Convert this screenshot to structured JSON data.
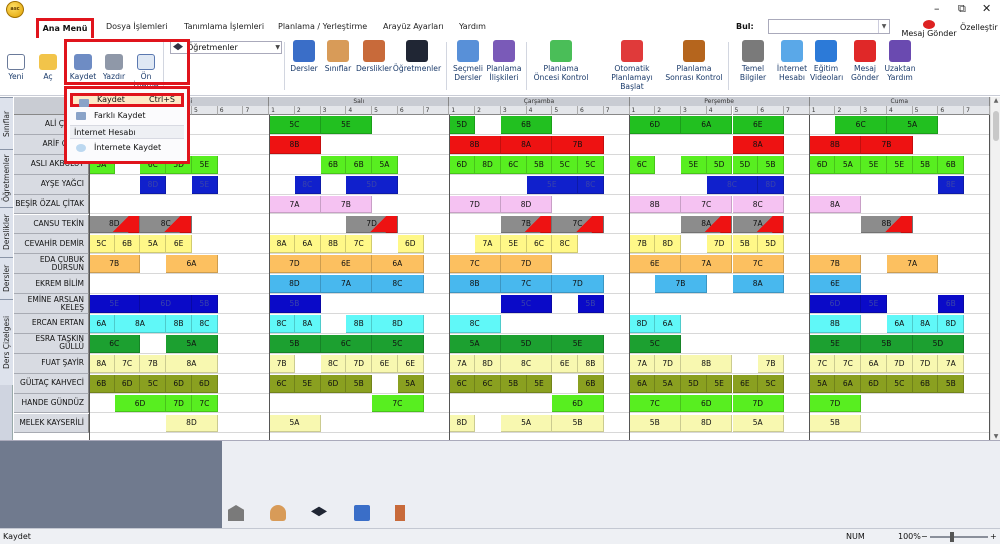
{
  "window": {
    "logo": "asc",
    "min": "–",
    "restore": "⧉",
    "close": "✕"
  },
  "menubar": {
    "tabs": [
      "Ana Menü",
      "Dosya İşlemleri",
      "Tanımlama İşlemleri",
      "Planlama / Yerleştirme",
      "Arayüz Ayarları",
      "Yardım"
    ],
    "find_label": "Bul:",
    "find_value": "",
    "message": "Mesaj Gönder",
    "customize": "Özelleştir"
  },
  "ribbon": {
    "buttons": [
      "Yeni",
      "Aç",
      "Kaydet",
      "Yazdır",
      "Ön İzleme",
      "Dersler",
      "Sınıflar",
      "Derslikler",
      "Öğretmenler",
      "Seçmeli Dersler",
      "Planlama İlişkileri",
      "Planlama Öncesi Kontrol",
      "Otomatik Planlamayı Başlat",
      "Planlama Sonrası Kontrol",
      "Temel Bilgiler",
      "İnternet Hesabı",
      "Eğitim Videoları",
      "Mesaj Gönder",
      "Uzaktan Yardım"
    ],
    "select_value": "Öğretmenler"
  },
  "save_menu": {
    "save": "Kaydet",
    "save_shortcut": "Ctrl+S",
    "save_as": "Farklı Kaydet",
    "header": "İnternet Hesabı",
    "save_internet": "İnternete Kaydet"
  },
  "side_tabs": [
    "Sınıflar",
    "Öğretmenler",
    "Derslikler",
    "Dersler",
    "Ders Çizelgesi"
  ],
  "days": [
    "Pazartesi",
    "Salı",
    "Çarşamba",
    "Perşembe",
    "Cuma"
  ],
  "periods": [
    "1",
    "2",
    "3",
    "4",
    "5",
    "6",
    "7"
  ],
  "teachers": [
    "ALİ ÇEKEN",
    "ARİF OĞUZ",
    "ASLI AKBULUT",
    "AYŞE YAĞCI",
    "BEŞİR ÖZAL ÇİTAK",
    "CANSU TEKİN",
    "CEVAHİR DEMİR",
    "EDA ÇUBUK DURSUN",
    "EKREM BİLİM",
    "EMİNE ARSLAN KELEŞ",
    "ERCAN ERTAN",
    "ESRA TAŞKIN GÜLLÜ",
    "FUAT ŞAYİR",
    "GÜLTAÇ KAHVECİ",
    "HANDE GÜNDÜZ",
    "MELEK KAYSERİLİ"
  ],
  "colors": {
    "green": "#22c020",
    "red": "#ee1212",
    "lime": "#58ee20",
    "navy": "#1020cc",
    "pink": "#f5c2f2",
    "gray": "#8c8c8c",
    "yellow": "#fff888",
    "orange": "#fcc060",
    "sky": "#48b8ee",
    "blue": "#0a0ac8",
    "cyan": "#60f8f8",
    "dkgreen": "#1ca030",
    "ltyellow": "#f8f8b0",
    "olive": "#8aa020"
  },
  "schedule": [
    [
      [
        "G",
        1,
        2,
        "6B"
      ],
      [
        "G",
        7,
        2,
        "5C"
      ],
      [
        "G",
        9,
        2,
        "5E"
      ],
      [
        "G",
        14,
        1,
        "5D"
      ],
      [
        "G",
        16,
        2,
        "6B"
      ],
      [
        "G",
        21,
        2,
        "6D"
      ],
      [
        "G",
        23,
        2,
        "6A"
      ],
      [
        "G",
        25,
        2,
        "6E"
      ],
      [
        "G",
        29,
        2,
        "6C"
      ],
      [
        "G",
        31,
        2,
        "5A"
      ]
    ],
    [
      [
        "R",
        1,
        2,
        "7B"
      ],
      [
        "R",
        7,
        2,
        "8B"
      ],
      [
        "R",
        14,
        2,
        "8B"
      ],
      [
        "R",
        16,
        2,
        "8A"
      ],
      [
        "R",
        18,
        2,
        "7B"
      ],
      [
        "R",
        25,
        2,
        "8A"
      ],
      [
        "R",
        28,
        2,
        "8B"
      ],
      [
        "R",
        30,
        2,
        "7B"
      ]
    ],
    [
      [
        "L",
        0,
        1,
        "5A"
      ],
      [
        "L",
        2,
        1,
        "6C"
      ],
      [
        "L",
        3,
        1,
        "5D"
      ],
      [
        "L",
        4,
        1,
        "5E"
      ],
      [
        "L",
        9,
        1,
        "6B"
      ],
      [
        "L",
        10,
        1,
        "6B"
      ],
      [
        "L",
        11,
        1,
        "5A"
      ],
      [
        "L",
        14,
        1,
        "6D"
      ],
      [
        "L",
        15,
        1,
        "8D"
      ],
      [
        "L",
        16,
        1,
        "6C"
      ],
      [
        "L",
        17,
        1,
        "5B"
      ],
      [
        "L",
        18,
        1,
        "5C"
      ],
      [
        "L",
        19,
        1,
        "5C"
      ],
      [
        "L",
        21,
        1,
        "6C"
      ],
      [
        "L",
        23,
        1,
        "5E"
      ],
      [
        "L",
        24,
        1,
        "5D"
      ],
      [
        "L",
        25,
        1,
        "5D"
      ],
      [
        "L",
        26,
        1,
        "5B"
      ],
      [
        "L",
        28,
        1,
        "6D"
      ],
      [
        "L",
        29,
        1,
        "5A"
      ],
      [
        "L",
        30,
        1,
        "5E"
      ],
      [
        "L",
        31,
        1,
        "5E"
      ],
      [
        "L",
        32,
        1,
        "5B"
      ],
      [
        "L",
        33,
        1,
        "6B"
      ]
    ],
    [
      [
        "N",
        2,
        1,
        "8D"
      ],
      [
        "N",
        4,
        1,
        "5E"
      ],
      [
        "N",
        8,
        1,
        "8C"
      ],
      [
        "N",
        10,
        2,
        "5D"
      ],
      [
        "N",
        17,
        2,
        "5E"
      ],
      [
        "N",
        19,
        1,
        "8C"
      ],
      [
        "N",
        24,
        2,
        "8C"
      ],
      [
        "N",
        26,
        1,
        "8D"
      ],
      [
        "N",
        33,
        1,
        "8E"
      ]
    ],
    [
      [
        "P",
        7,
        2,
        "7A"
      ],
      [
        "P",
        9,
        2,
        "7B"
      ],
      [
        "P",
        14,
        2,
        "7D"
      ],
      [
        "P",
        16,
        2,
        "8D"
      ],
      [
        "P",
        21,
        2,
        "8B"
      ],
      [
        "P",
        23,
        2,
        "7C"
      ],
      [
        "P",
        25,
        2,
        "8C"
      ],
      [
        "P",
        28,
        2,
        "8A"
      ]
    ],
    [
      [
        "X",
        0,
        2,
        "8D"
      ],
      [
        "X",
        2,
        2,
        "8C"
      ],
      [
        "X",
        10,
        2,
        "7D"
      ],
      [
        "X",
        16,
        2,
        "7B"
      ],
      [
        "X",
        18,
        2,
        "7C"
      ],
      [
        "X",
        23,
        2,
        "8A"
      ],
      [
        "X",
        25,
        2,
        "7A"
      ],
      [
        "X",
        30,
        2,
        "8B"
      ]
    ],
    [
      [
        "Y",
        0,
        1,
        "5C"
      ],
      [
        "Y",
        1,
        1,
        "6B"
      ],
      [
        "Y",
        2,
        1,
        "5A"
      ],
      [
        "Y",
        3,
        1,
        "6E"
      ],
      [
        "Y",
        7,
        1,
        "8A"
      ],
      [
        "Y",
        8,
        1,
        "6A"
      ],
      [
        "Y",
        9,
        1,
        "8B"
      ],
      [
        "Y",
        10,
        1,
        "7C"
      ],
      [
        "Y",
        12,
        1,
        "6D"
      ],
      [
        "Y",
        15,
        1,
        "7A"
      ],
      [
        "Y",
        16,
        1,
        "5E"
      ],
      [
        "Y",
        17,
        1,
        "6C"
      ],
      [
        "Y",
        18,
        1,
        "8C"
      ],
      [
        "Y",
        21,
        1,
        "7B"
      ],
      [
        "Y",
        22,
        1,
        "8D"
      ],
      [
        "Y",
        24,
        1,
        "7D"
      ],
      [
        "Y",
        25,
        1,
        "5B"
      ],
      [
        "Y",
        26,
        1,
        "5D"
      ]
    ],
    [
      [
        "O",
        0,
        2,
        "7B"
      ],
      [
        "O",
        3,
        2,
        "6A"
      ],
      [
        "O",
        7,
        2,
        "7D"
      ],
      [
        "O",
        9,
        2,
        "6E"
      ],
      [
        "O",
        11,
        2,
        "6A"
      ],
      [
        "O",
        14,
        2,
        "7C"
      ],
      [
        "O",
        16,
        2,
        "7D"
      ],
      [
        "O",
        21,
        2,
        "6E"
      ],
      [
        "O",
        23,
        2,
        "7A"
      ],
      [
        "O",
        25,
        2,
        "7C"
      ],
      [
        "O",
        28,
        2,
        "7B"
      ],
      [
        "O",
        31,
        2,
        "7A"
      ]
    ],
    [
      [
        "S",
        7,
        2,
        "8D"
      ],
      [
        "S",
        9,
        2,
        "7A"
      ],
      [
        "S",
        11,
        2,
        "8C"
      ],
      [
        "S",
        14,
        2,
        "8B"
      ],
      [
        "S",
        16,
        2,
        "7C"
      ],
      [
        "S",
        18,
        2,
        "7D"
      ],
      [
        "S",
        22,
        2,
        "7B"
      ],
      [
        "S",
        25,
        2,
        "8A"
      ],
      [
        "S",
        28,
        2,
        "6E"
      ]
    ],
    [
      [
        "B",
        0,
        2,
        "5E"
      ],
      [
        "B",
        2,
        2,
        "6D"
      ],
      [
        "B",
        4,
        1,
        "5B"
      ],
      [
        "B",
        7,
        2,
        "5B"
      ],
      [
        "B",
        16,
        2,
        "5C"
      ],
      [
        "B",
        19,
        1,
        "5B"
      ],
      [
        "B",
        28,
        2,
        "6D"
      ],
      [
        "B",
        30,
        1,
        "5E"
      ],
      [
        "B",
        33,
        1,
        "6B"
      ]
    ],
    [
      [
        "C",
        0,
        1,
        "6A"
      ],
      [
        "C",
        1,
        2,
        "8A"
      ],
      [
        "C",
        3,
        1,
        "8B"
      ],
      [
        "C",
        4,
        1,
        "8C"
      ],
      [
        "C",
        7,
        1,
        "8C"
      ],
      [
        "C",
        8,
        1,
        "8A"
      ],
      [
        "C",
        10,
        1,
        "8B"
      ],
      [
        "C",
        11,
        2,
        "8D"
      ],
      [
        "C",
        14,
        2,
        "8C"
      ],
      [
        "C",
        21,
        1,
        "8D"
      ],
      [
        "C",
        22,
        1,
        "6A"
      ],
      [
        "C",
        28,
        2,
        "8B"
      ],
      [
        "C",
        31,
        1,
        "6A"
      ],
      [
        "C",
        32,
        1,
        "8A"
      ],
      [
        "C",
        33,
        1,
        "8D"
      ]
    ],
    [
      [
        "D",
        0,
        2,
        "6C"
      ],
      [
        "D",
        3,
        2,
        "5A"
      ],
      [
        "D",
        7,
        2,
        "5B"
      ],
      [
        "D",
        9,
        2,
        "6C"
      ],
      [
        "D",
        11,
        2,
        "5C"
      ],
      [
        "D",
        14,
        2,
        "5A"
      ],
      [
        "D",
        16,
        2,
        "5D"
      ],
      [
        "D",
        18,
        2,
        "5E"
      ],
      [
        "D",
        21,
        2,
        "5C"
      ],
      [
        "D",
        28,
        2,
        "5E"
      ],
      [
        "D",
        30,
        2,
        "5B"
      ],
      [
        "D",
        32,
        2,
        "5D"
      ]
    ],
    [
      [
        "W",
        0,
        1,
        "8A"
      ],
      [
        "W",
        1,
        1,
        "7C"
      ],
      [
        "W",
        2,
        1,
        "7B"
      ],
      [
        "W",
        3,
        2,
        "8A"
      ],
      [
        "W",
        7,
        1,
        "7B"
      ],
      [
        "W",
        9,
        1,
        "8C"
      ],
      [
        "W",
        10,
        1,
        "7D"
      ],
      [
        "W",
        11,
        1,
        "6E"
      ],
      [
        "W",
        12,
        1,
        "6E"
      ],
      [
        "W",
        14,
        1,
        "7A"
      ],
      [
        "W",
        15,
        1,
        "8D"
      ],
      [
        "W",
        16,
        2,
        "8C"
      ],
      [
        "W",
        18,
        1,
        "6E"
      ],
      [
        "W",
        19,
        1,
        "8B"
      ],
      [
        "W",
        21,
        1,
        "7A"
      ],
      [
        "W",
        22,
        1,
        "7D"
      ],
      [
        "W",
        23,
        2,
        "8B"
      ],
      [
        "W",
        26,
        1,
        "7B"
      ],
      [
        "W",
        28,
        1,
        "7C"
      ],
      [
        "W",
        29,
        1,
        "7C"
      ],
      [
        "W",
        30,
        1,
        "6A"
      ],
      [
        "W",
        31,
        1,
        "7D"
      ],
      [
        "W",
        32,
        1,
        "7D"
      ],
      [
        "W",
        33,
        1,
        "7A"
      ]
    ],
    [
      [
        "V",
        0,
        1,
        "6B"
      ],
      [
        "V",
        1,
        1,
        "6D"
      ],
      [
        "V",
        2,
        1,
        "5C"
      ],
      [
        "V",
        3,
        1,
        "6D"
      ],
      [
        "V",
        4,
        1,
        "6D"
      ],
      [
        "V",
        7,
        1,
        "6C"
      ],
      [
        "V",
        8,
        1,
        "5E"
      ],
      [
        "V",
        9,
        1,
        "6D"
      ],
      [
        "V",
        10,
        1,
        "5B"
      ],
      [
        "V",
        12,
        1,
        "5A"
      ],
      [
        "V",
        14,
        1,
        "6C"
      ],
      [
        "V",
        15,
        1,
        "6C"
      ],
      [
        "V",
        16,
        1,
        "5B"
      ],
      [
        "V",
        17,
        1,
        "5E"
      ],
      [
        "V",
        19,
        1,
        "6B"
      ],
      [
        "V",
        21,
        1,
        "6A"
      ],
      [
        "V",
        22,
        1,
        "5A"
      ],
      [
        "V",
        23,
        1,
        "5D"
      ],
      [
        "V",
        24,
        1,
        "5E"
      ],
      [
        "V",
        25,
        1,
        "6E"
      ],
      [
        "V",
        26,
        1,
        "5C"
      ],
      [
        "V",
        28,
        1,
        "5A"
      ],
      [
        "V",
        29,
        1,
        "6A"
      ],
      [
        "V",
        30,
        1,
        "6D"
      ],
      [
        "V",
        31,
        1,
        "5C"
      ],
      [
        "V",
        32,
        1,
        "6B"
      ],
      [
        "V",
        33,
        1,
        "5B"
      ]
    ],
    [
      [
        "L",
        1,
        2,
        "6D"
      ],
      [
        "L",
        3,
        1,
        "7D"
      ],
      [
        "L",
        4,
        1,
        "7C"
      ],
      [
        "L",
        11,
        2,
        "7C"
      ],
      [
        "L",
        18,
        2,
        "6D"
      ],
      [
        "L",
        21,
        2,
        "7C"
      ],
      [
        "L",
        23,
        2,
        "6D"
      ],
      [
        "L",
        25,
        2,
        "7D"
      ],
      [
        "L",
        28,
        2,
        "7D"
      ]
    ],
    [
      [
        "Z",
        3,
        2,
        "8D"
      ],
      [
        "Z",
        7,
        2,
        "5A"
      ],
      [
        "Z",
        14,
        1,
        "8D"
      ],
      [
        "Z",
        16,
        2,
        "5A"
      ],
      [
        "Z",
        18,
        2,
        "5B"
      ],
      [
        "Z",
        21,
        2,
        "5B"
      ],
      [
        "Z",
        23,
        2,
        "8D"
      ],
      [
        "Z",
        25,
        2,
        "5A"
      ],
      [
        "Z",
        28,
        2,
        "5B"
      ]
    ]
  ],
  "status": {
    "left": "Kaydet",
    "num": "NUM",
    "zoom": "100%",
    "zoom_minus": "−",
    "zoom_plus": "+"
  }
}
